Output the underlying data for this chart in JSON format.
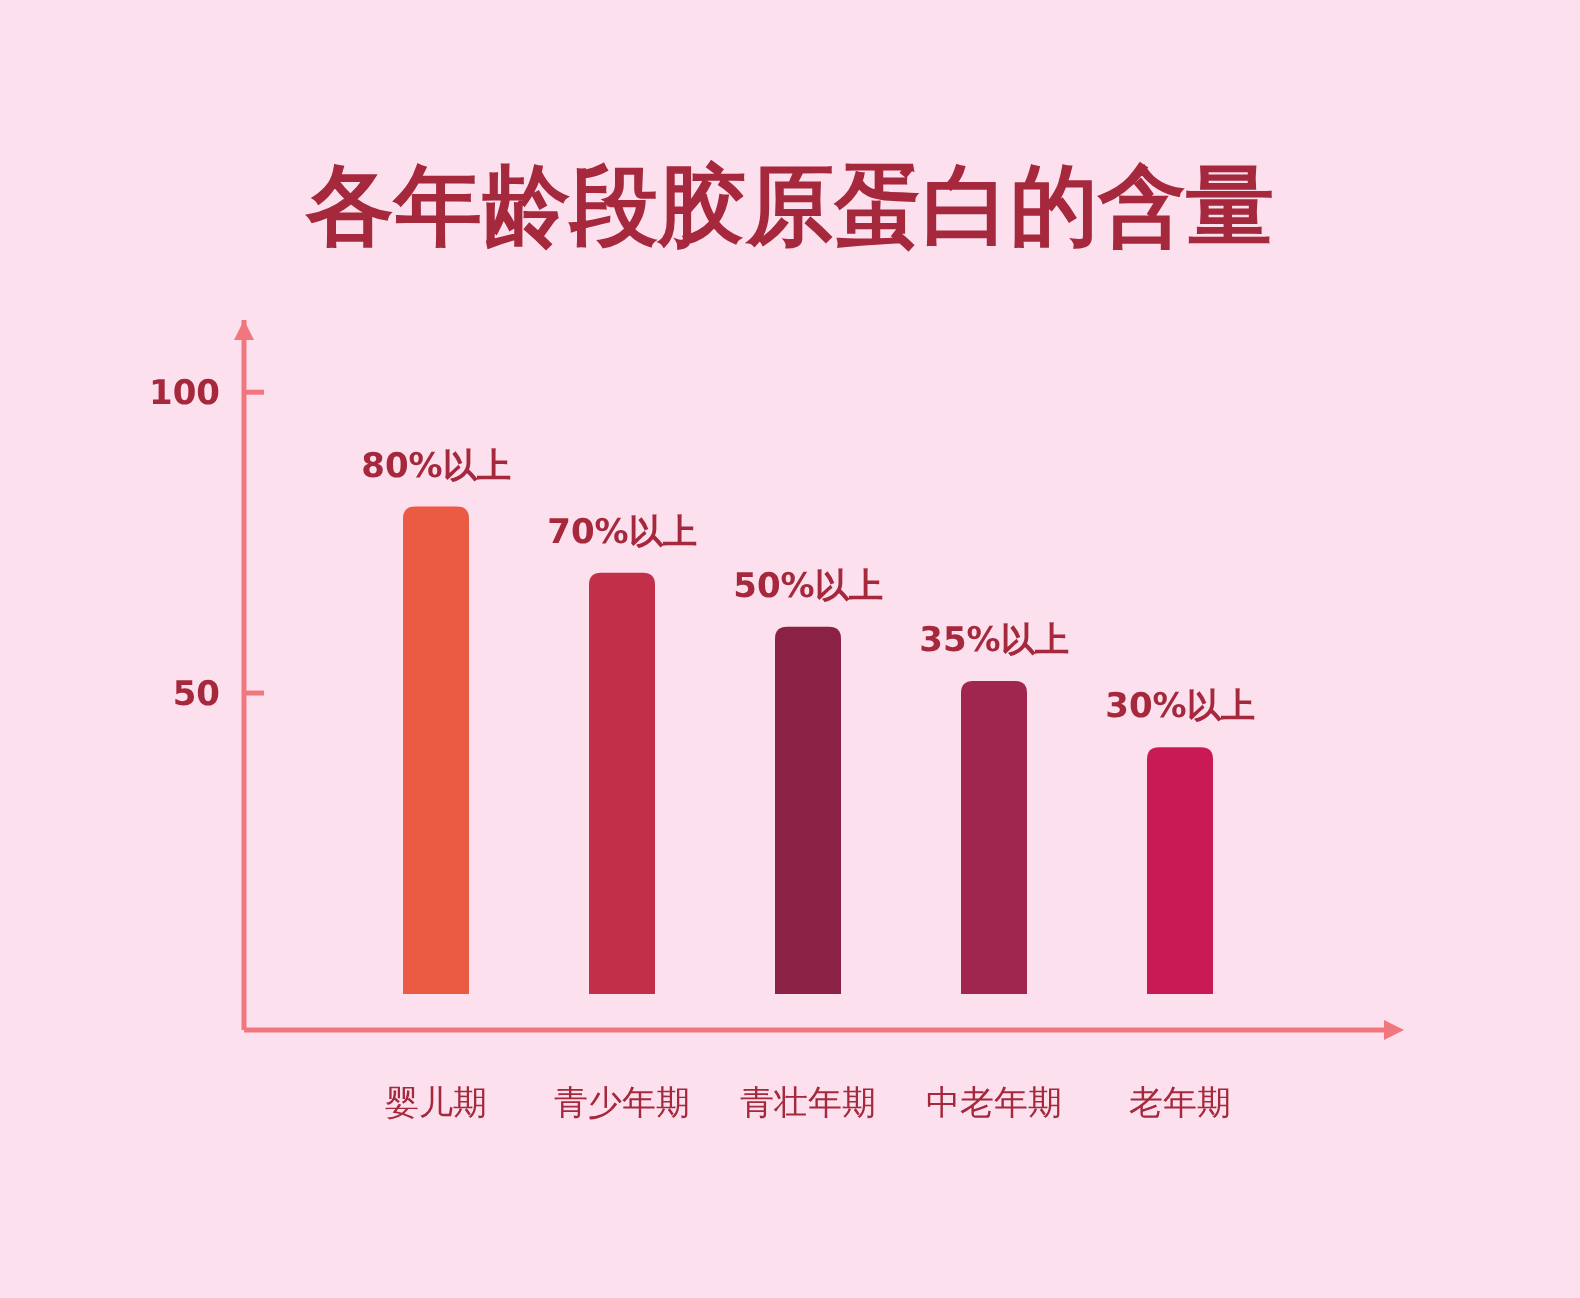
{
  "chart_data": {
    "type": "bar",
    "title": "各年龄段胶原蛋白的含量",
    "categories": [
      "婴儿期",
      "青少年期",
      "青壮年期",
      "中老年期",
      "老年期"
    ],
    "values": [
      81,
      70,
      61,
      52,
      41
    ],
    "colors": [
      "#eb5a42",
      "#c22f48",
      "#8b2246",
      "#a0264f",
      "#c91a55"
    ],
    "annotations": [
      {
        "text": "80%以上",
        "x": "婴儿期",
        "y": 81
      },
      {
        "text": "70%以上",
        "x": "青少年期",
        "y": 70
      },
      {
        "text": "50%以上",
        "x": "青壮年期",
        "y": 61
      },
      {
        "text": "35%以上",
        "x": "中老年期",
        "y": 52
      },
      {
        "text": "30%以上",
        "x": "老年期",
        "y": 41
      }
    ],
    "ylim": [
      -6,
      112
    ],
    "yticks": [
      50,
      100
    ]
  }
}
